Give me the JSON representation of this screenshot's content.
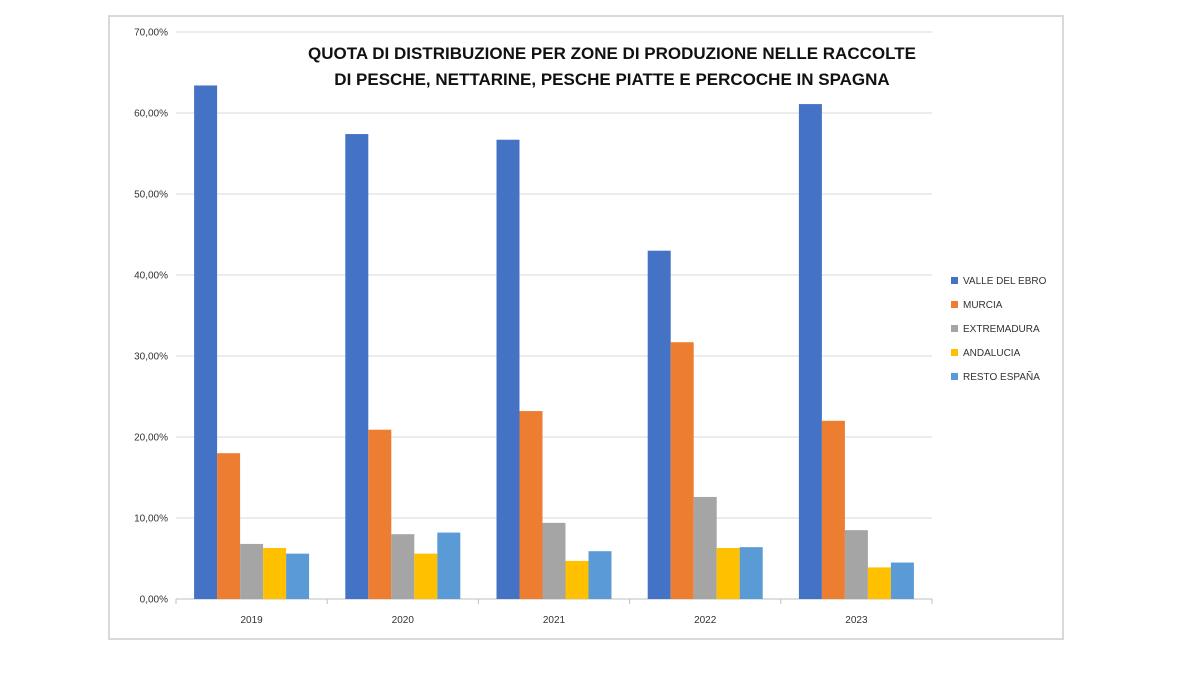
{
  "chart_data": {
    "type": "bar",
    "title_lines": [
      "QUOTA DI DISTRIBUZIONE PER ZONE DI PRODUZIONE NELLE RACCOLTE",
      "DI PESCHE, NETTARINE, PESCHE PIATTE E PERCOCHE IN SPAGNA"
    ],
    "categories": [
      "2019",
      "2020",
      "2021",
      "2022",
      "2023"
    ],
    "ylim": [
      0,
      70
    ],
    "yticks": [
      0,
      10,
      20,
      30,
      40,
      50,
      60,
      70
    ],
    "ytick_labels": [
      "0,00%",
      "10,00%",
      "20,00%",
      "30,00%",
      "40,00%",
      "50,00%",
      "60,00%",
      "70,00%"
    ],
    "grid": true,
    "legend_position": "right",
    "series": [
      {
        "name": "VALLE DEL EBRO",
        "color": "#4472C4",
        "values": [
          63.4,
          57.4,
          56.7,
          43.0,
          61.1
        ]
      },
      {
        "name": "MURCIA",
        "color": "#ED7D31",
        "values": [
          18.0,
          20.9,
          23.2,
          31.7,
          22.0
        ]
      },
      {
        "name": "EXTREMADURA",
        "color": "#A5A5A5",
        "values": [
          6.8,
          8.0,
          9.4,
          12.6,
          8.5
        ]
      },
      {
        "name": "ANDALUCIA",
        "color": "#FFC000",
        "values": [
          6.3,
          5.6,
          4.7,
          6.3,
          3.9
        ]
      },
      {
        "name": "RESTO ESPAÑA",
        "color": "#5B9BD5",
        "values": [
          5.6,
          8.2,
          5.9,
          6.4,
          4.5
        ]
      }
    ]
  }
}
